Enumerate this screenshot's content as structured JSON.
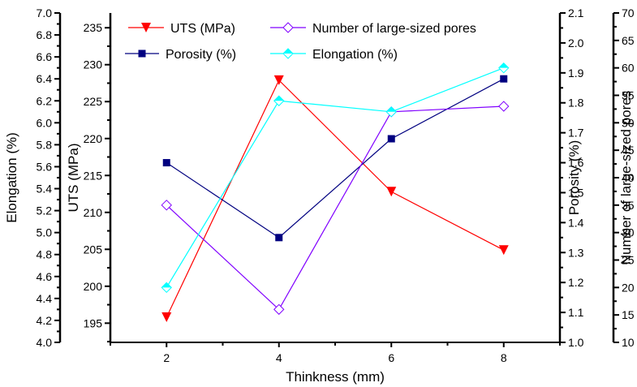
{
  "chart_data": {
    "type": "line",
    "title": "",
    "xlabel": "Thinkness (mm)",
    "x": [
      2,
      4,
      6,
      8
    ],
    "xlim": [
      1,
      9
    ],
    "xticks": [
      2,
      4,
      6,
      8
    ],
    "grid": false,
    "legend_placement": "top",
    "axes": {
      "elongation": {
        "label": "Elongation (%)",
        "side": "left-outer",
        "ylim": [
          4.0,
          7.0
        ],
        "ticks": [
          "4.0",
          "4.2",
          "4.4",
          "4.6",
          "4.8",
          "5.0",
          "5.2",
          "5.4",
          "5.6",
          "5.8",
          "6.0",
          "6.2",
          "6.4",
          "6.6",
          "6.8",
          "7.0"
        ]
      },
      "uts": {
        "label": "UTS (MPa)",
        "side": "left-inner",
        "ylim": [
          192.4,
          237.0
        ],
        "ticks": [
          "195",
          "200",
          "205",
          "210",
          "215",
          "220",
          "225",
          "230",
          "235"
        ]
      },
      "porosity": {
        "label": "Porosity (%)",
        "side": "right-inner",
        "ylim": [
          1.0,
          2.1
        ],
        "ticks": [
          "1.0",
          "1.1",
          "1.2",
          "1.3",
          "1.4",
          "1.5",
          "1.6",
          "1.7",
          "1.8",
          "1.9",
          "2.0",
          "2.1"
        ]
      },
      "pores": {
        "label": "Number of large-sized pores",
        "side": "right-outer",
        "ylim": [
          10,
          70
        ],
        "ticks": [
          "10",
          "15",
          "20",
          "25",
          "30",
          "35",
          "40",
          "45",
          "50",
          "55",
          "60",
          "65",
          "70"
        ]
      }
    },
    "series": [
      {
        "name": "UTS (MPa)",
        "axis": "uts",
        "color": "#ff0000",
        "marker": "triangle-down-filled",
        "values": [
          195.8,
          227.9,
          212.8,
          204.9
        ]
      },
      {
        "name": "Porosity (%)",
        "axis": "porosity",
        "color": "#000080",
        "marker": "square-filled",
        "values": [
          1.6,
          1.35,
          1.68,
          1.88
        ]
      },
      {
        "name": "Number of large-sized pores",
        "axis": "pores",
        "color": "#8000ff",
        "marker": "diamond-open",
        "values": [
          35,
          16,
          52,
          53
        ]
      },
      {
        "name": "Elongation (%)",
        "axis": "elongation",
        "color": "#00ffff",
        "marker": "diamond-half",
        "values": [
          4.5,
          6.2,
          6.1,
          6.5
        ]
      }
    ]
  }
}
